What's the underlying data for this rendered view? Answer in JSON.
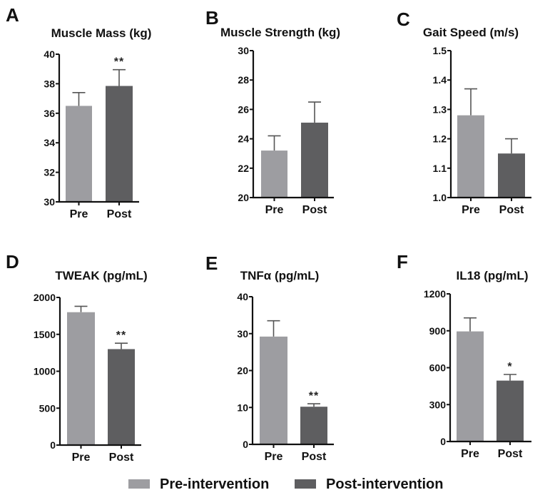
{
  "colors": {
    "pre": "#9d9da1",
    "post": "#5e5e60",
    "axis": "#111111",
    "error": "#555555"
  },
  "legend": {
    "position": "bottom-center",
    "items": [
      {
        "label": "Pre-intervention",
        "series": "pre"
      },
      {
        "label": "Post-intervention",
        "series": "post"
      }
    ]
  },
  "chart_data": [
    {
      "panel": "A",
      "type": "bar",
      "title": "Muscle Mass (kg)",
      "categories": [
        "Pre",
        "Post"
      ],
      "values": [
        36.5,
        37.85
      ],
      "error_upper": [
        37.4,
        38.95
      ],
      "significance": [
        "",
        "**"
      ],
      "ylim": [
        30,
        40
      ],
      "yticks": [
        "30",
        "32",
        "34",
        "36",
        "38",
        "40"
      ],
      "ytick_values": [
        30,
        32,
        34,
        36,
        38,
        40
      ],
      "xlabel": "",
      "ylabel": "",
      "grid": false
    },
    {
      "panel": "B",
      "type": "bar",
      "title": "Muscle Strength (kg)",
      "categories": [
        "Pre",
        "Post"
      ],
      "values": [
        23.2,
        25.1
      ],
      "error_upper": [
        24.2,
        26.5
      ],
      "significance": [
        "",
        ""
      ],
      "ylim": [
        20,
        30
      ],
      "yticks": [
        "20",
        "22",
        "24",
        "26",
        "28",
        "30"
      ],
      "ytick_values": [
        20,
        22,
        24,
        26,
        28,
        30
      ],
      "xlabel": "",
      "ylabel": "",
      "grid": false
    },
    {
      "panel": "C",
      "type": "bar",
      "title": "Gait Speed (m/s)",
      "categories": [
        "Pre",
        "Post"
      ],
      "values": [
        1.28,
        1.15
      ],
      "error_upper": [
        1.37,
        1.2
      ],
      "significance": [
        "",
        ""
      ],
      "ylim": [
        1.0,
        1.5
      ],
      "yticks": [
        "1.0",
        "1.1",
        "1.2",
        "1.3",
        "1.4",
        "1.5"
      ],
      "ytick_values": [
        1.0,
        1.1,
        1.2,
        1.3,
        1.4,
        1.5
      ],
      "xlabel": "",
      "ylabel": "",
      "grid": false
    },
    {
      "panel": "D",
      "type": "bar",
      "title": "TWEAK (pg/mL)",
      "categories": [
        "Pre",
        "Post"
      ],
      "values": [
        1800,
        1300
      ],
      "error_upper": [
        1880,
        1380
      ],
      "significance": [
        "",
        "**"
      ],
      "ylim": [
        0,
        2000
      ],
      "yticks": [
        "0",
        "500",
        "1000",
        "1500",
        "2000"
      ],
      "ytick_values": [
        0,
        500,
        1000,
        1500,
        2000
      ],
      "xlabel": "",
      "ylabel": "",
      "grid": false
    },
    {
      "panel": "E",
      "type": "bar",
      "title": "TNFα (pg/mL)",
      "categories": [
        "Pre",
        "Post"
      ],
      "values": [
        29.2,
        10.2
      ],
      "error_upper": [
        33.5,
        11.0
      ],
      "significance": [
        "",
        "**"
      ],
      "ylim": [
        0,
        40
      ],
      "yticks": [
        "0",
        "10",
        "20",
        "30",
        "40"
      ],
      "ytick_values": [
        0,
        10,
        20,
        30,
        40
      ],
      "xlabel": "",
      "ylabel": "",
      "grid": false
    },
    {
      "panel": "F",
      "type": "bar",
      "title": "IL18 (pg/mL)",
      "categories": [
        "Pre",
        "Post"
      ],
      "values": [
        895,
        495
      ],
      "error_upper": [
        1005,
        545
      ],
      "significance": [
        "",
        "*"
      ],
      "ylim": [
        0,
        1200
      ],
      "yticks": [
        "0",
        "300",
        "600",
        "900",
        "1200"
      ],
      "ytick_values": [
        0,
        300,
        600,
        900,
        1200
      ],
      "xlabel": "",
      "ylabel": "",
      "grid": false
    }
  ]
}
